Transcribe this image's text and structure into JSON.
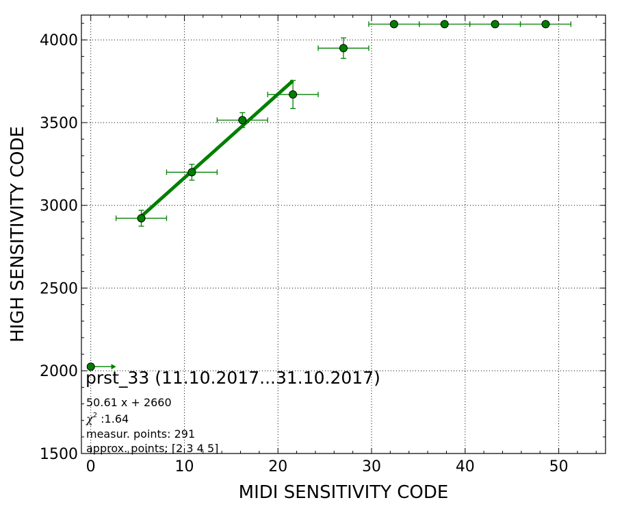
{
  "chart_data": {
    "type": "scatter",
    "title": "",
    "xlabel": "MIDI SENSITIVITY CODE",
    "ylabel": "HIGH SENSITIVITY CODE",
    "xlim": [
      -1,
      55
    ],
    "ylim": [
      1500,
      4150
    ],
    "xticks": [
      0,
      10,
      20,
      30,
      40,
      50
    ],
    "yticks": [
      1500,
      2000,
      2500,
      3000,
      3500,
      4000
    ],
    "grid": true,
    "colors": {
      "series": "#007f00",
      "marker_edge": "#000000"
    },
    "points": [
      {
        "x": 5.4,
        "y": 2922,
        "xerr": 2.7,
        "yerr": 48
      },
      {
        "x": 10.8,
        "y": 3200,
        "xerr": 2.7,
        "yerr": 48
      },
      {
        "x": 16.2,
        "y": 3515,
        "xerr": 2.7,
        "yerr": 45
      },
      {
        "x": 21.6,
        "y": 3670,
        "xerr": 2.7,
        "yerr": 85
      },
      {
        "x": 27.0,
        "y": 3950,
        "xerr": 2.7,
        "yerr": 62
      },
      {
        "x": 32.4,
        "y": 4095,
        "xerr": 2.7,
        "yerr": 0
      },
      {
        "x": 37.8,
        "y": 4095,
        "xerr": 2.7,
        "yerr": 0
      },
      {
        "x": 43.2,
        "y": 4095,
        "xerr": 2.7,
        "yerr": 0
      },
      {
        "x": 48.6,
        "y": 4095,
        "xerr": 2.7,
        "yerr": 0
      }
    ],
    "special_point": {
      "x": 0,
      "y": 2025,
      "xerr_plus": 2.7
    },
    "fit": {
      "slope": 50.61,
      "intercept": 2660,
      "x_range": [
        5.4,
        21.6
      ]
    },
    "annotations": {
      "title_line": "prst_33 (11.10.2017...31.10.2017)",
      "formula": "50.61 x + 2660",
      "chi2_symbol": "χ",
      "chi2_sup": "2",
      "chi2_value": " :1.64",
      "measur_points": "measur. points: 291",
      "approx_points": "approx. points: [2 3 4 5]"
    }
  }
}
